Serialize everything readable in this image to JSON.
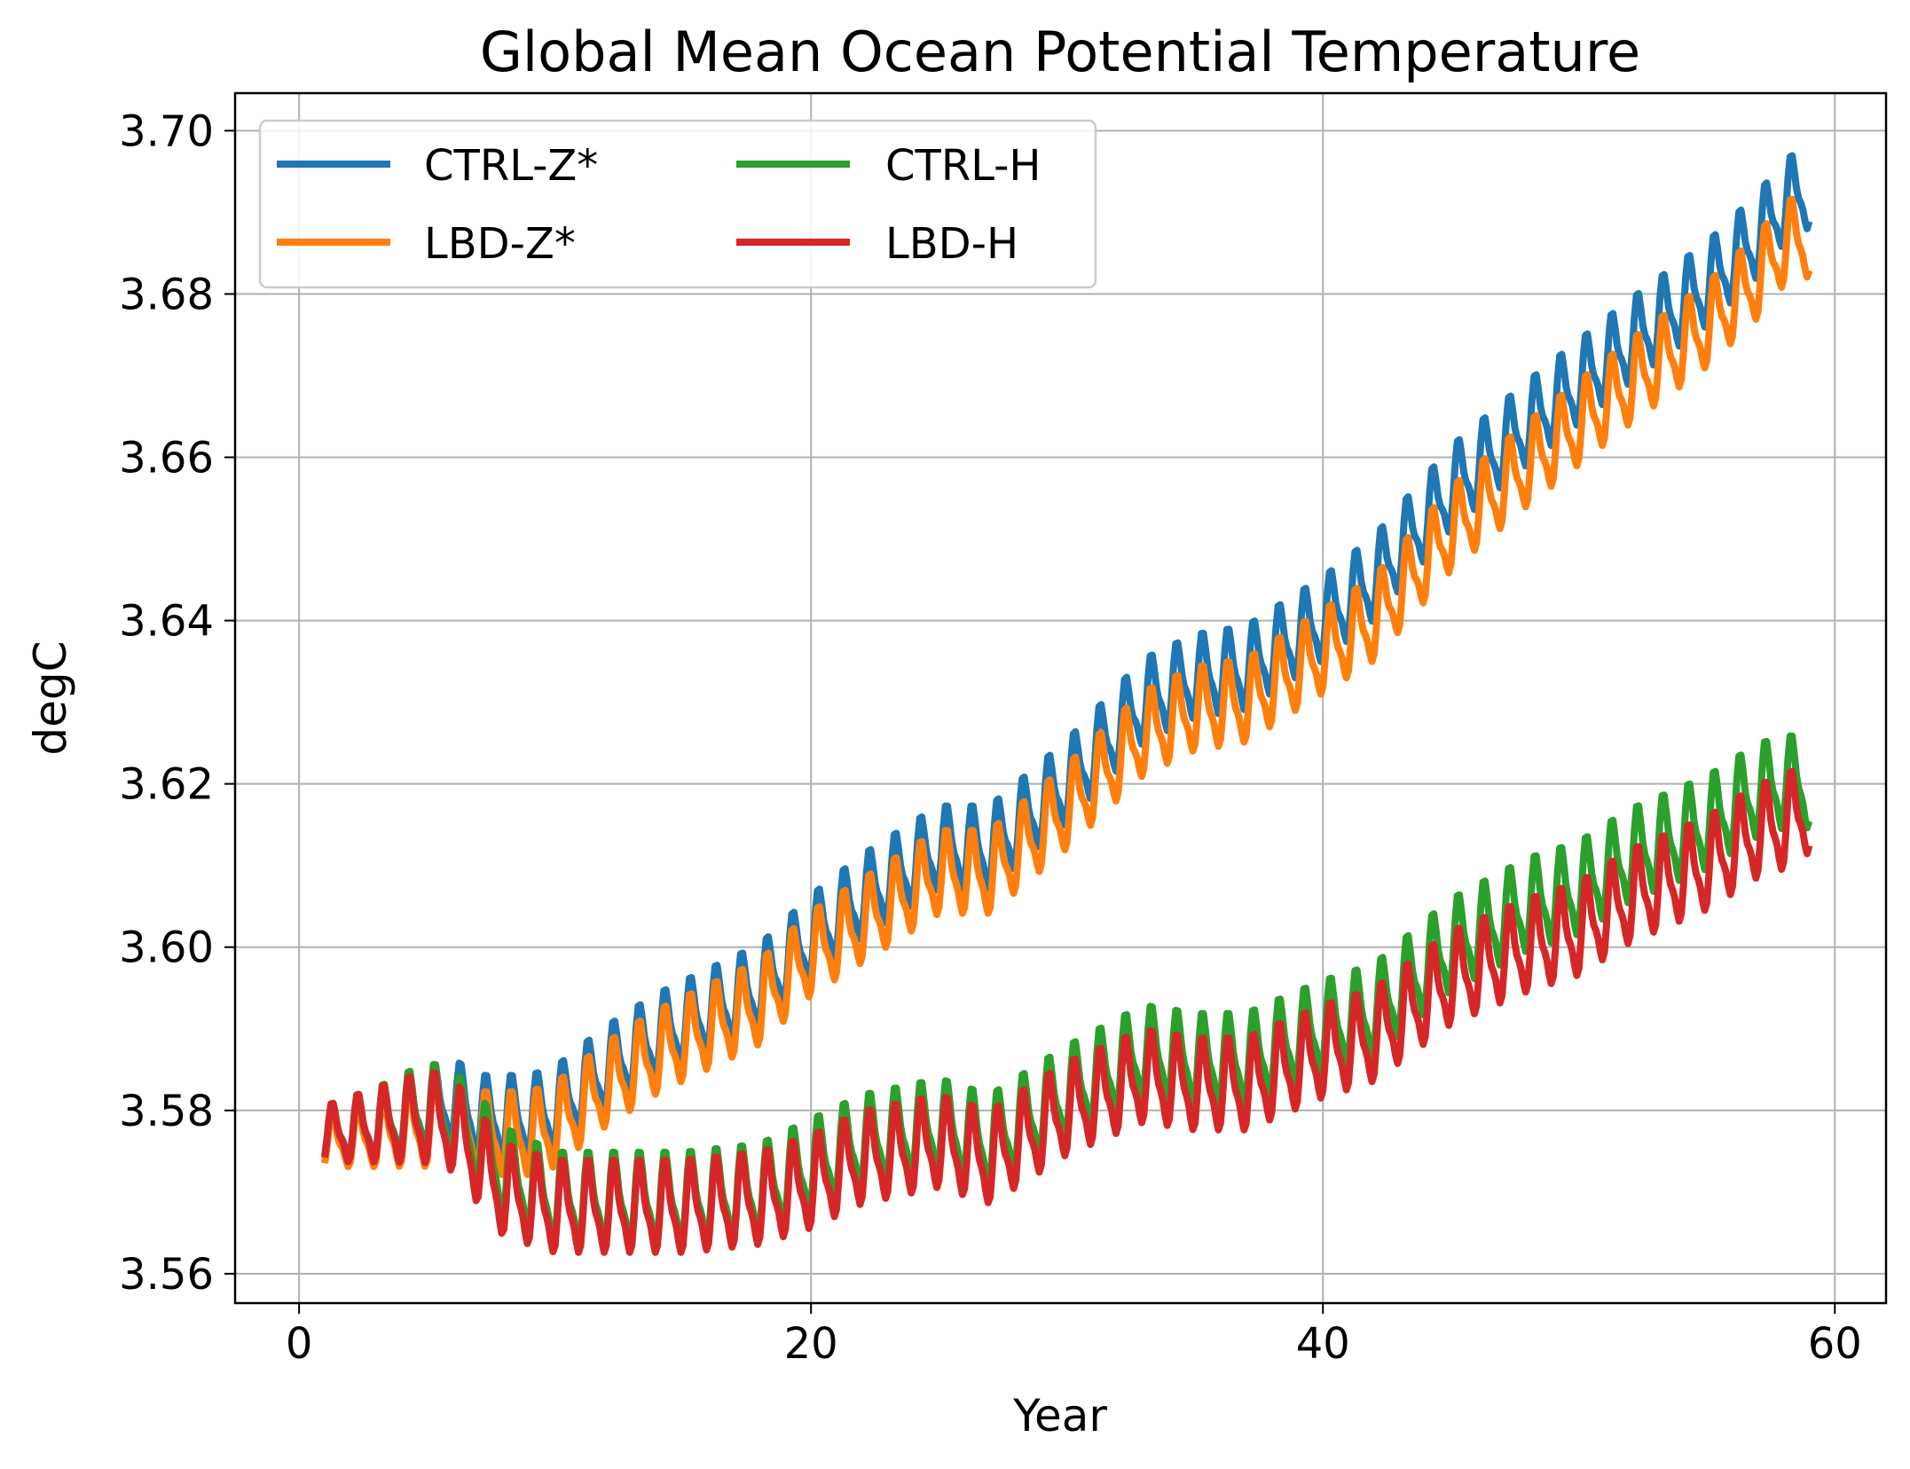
{
  "chart_data": {
    "type": "line",
    "title": "Global Mean Ocean Potential Temperature",
    "xlabel": "Year",
    "ylabel": "degC",
    "xlim": [
      -2.5,
      62
    ],
    "ylim": [
      3.5564,
      3.7046
    ],
    "xticks": [
      0,
      20,
      40,
      60
    ],
    "xtick_labels": [
      "0",
      "20",
      "40",
      "60"
    ],
    "yticks": [
      3.56,
      3.58,
      3.6,
      3.62,
      3.64,
      3.66,
      3.68,
      3.7
    ],
    "ytick_labels": [
      "3.56",
      "3.58",
      "3.60",
      "3.62",
      "3.64",
      "3.66",
      "3.68",
      "3.70"
    ],
    "grid": true,
    "legend_position": "upper-left",
    "legend_columns": 2,
    "series": [
      {
        "name": "CTRL-Z*",
        "color": "#1f77b4",
        "x": [
          1,
          3,
          5,
          6,
          7,
          9,
          10,
          12,
          14,
          16,
          18,
          20,
          22,
          25,
          27,
          30,
          33,
          35,
          37,
          40,
          42,
          45,
          48,
          50,
          52,
          55,
          57,
          58,
          59
        ],
        "y": [
          3.577,
          3.578,
          3.58,
          3.581,
          3.579,
          3.579,
          3.58,
          3.585,
          3.589,
          3.592,
          3.595,
          3.601,
          3.606,
          3.612,
          3.612,
          3.62,
          3.63,
          3.633,
          3.634,
          3.64,
          3.645,
          3.656,
          3.664,
          3.669,
          3.674,
          3.681,
          3.687,
          3.691,
          3.693
        ],
        "amplitude": 0.0045
      },
      {
        "name": "LBD-Z*",
        "color": "#ff7f0e",
        "x": [
          1,
          3,
          5,
          6,
          7,
          9,
          10,
          12,
          14,
          16,
          18,
          20,
          22,
          25,
          27,
          30,
          33,
          35,
          37,
          40,
          42,
          45,
          48,
          50,
          52,
          55,
          57,
          58,
          59
        ],
        "y": [
          3.576,
          3.577,
          3.578,
          3.579,
          3.577,
          3.577,
          3.578,
          3.583,
          3.587,
          3.59,
          3.593,
          3.599,
          3.603,
          3.609,
          3.609,
          3.617,
          3.626,
          3.629,
          3.63,
          3.636,
          3.64,
          3.651,
          3.659,
          3.664,
          3.669,
          3.676,
          3.682,
          3.686,
          3.687
        ],
        "amplitude": 0.0045
      },
      {
        "name": "CTRL-H",
        "color": "#2ca02c",
        "x": [
          1,
          3,
          5,
          6,
          7,
          8,
          10,
          12,
          15,
          18,
          20,
          22,
          25,
          27,
          30,
          33,
          35,
          37,
          40,
          42,
          45,
          48,
          50,
          52,
          55,
          57,
          58,
          59
        ],
        "y": [
          3.577,
          3.578,
          3.58,
          3.579,
          3.576,
          3.572,
          3.569,
          3.569,
          3.569,
          3.57,
          3.573,
          3.576,
          3.578,
          3.576,
          3.582,
          3.587,
          3.586,
          3.586,
          3.59,
          3.592,
          3.6,
          3.605,
          3.607,
          3.611,
          3.615,
          3.619,
          3.62,
          3.62
        ],
        "amplitude": 0.005
      },
      {
        "name": "LBD-H",
        "color": "#d62728",
        "x": [
          1,
          3,
          5,
          6,
          7,
          8,
          10,
          12,
          15,
          18,
          20,
          22,
          25,
          27,
          30,
          33,
          35,
          37,
          40,
          42,
          45,
          48,
          50,
          52,
          55,
          57,
          58,
          59
        ],
        "y": [
          3.577,
          3.578,
          3.579,
          3.578,
          3.574,
          3.57,
          3.568,
          3.568,
          3.568,
          3.569,
          3.571,
          3.574,
          3.576,
          3.574,
          3.58,
          3.584,
          3.583,
          3.583,
          3.587,
          3.589,
          3.596,
          3.6,
          3.602,
          3.606,
          3.61,
          3.614,
          3.615,
          3.617
        ],
        "amplitude": 0.005
      }
    ]
  }
}
